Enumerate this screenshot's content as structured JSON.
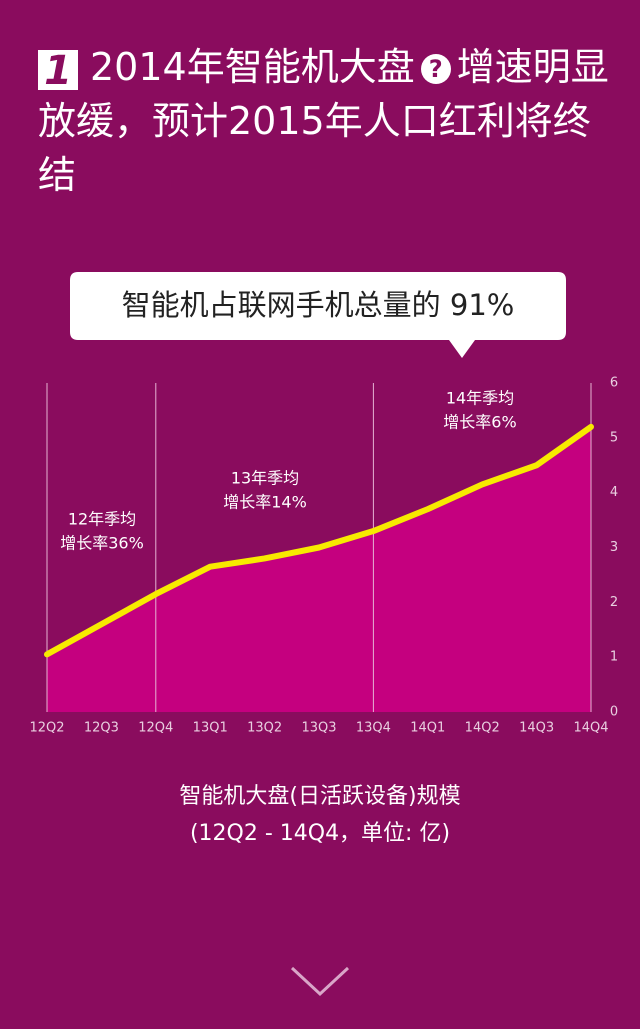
{
  "badge": "1",
  "title_part1": "2014年智能机大盘",
  "title_icon": "?",
  "title_part2": "增速明显放缓，预计2015年人口红利将终结",
  "callout": "智能机占联网手机总量的 91%",
  "chart_data": {
    "type": "area",
    "categories": [
      "12Q2",
      "12Q3",
      "12Q4",
      "13Q1",
      "13Q2",
      "13Q3",
      "13Q4",
      "14Q1",
      "14Q2",
      "14Q3",
      "14Q4"
    ],
    "values": [
      1.05,
      1.6,
      2.15,
      2.65,
      2.8,
      3.0,
      3.3,
      3.7,
      4.15,
      4.5,
      5.2
    ],
    "color": "#c5007f",
    "line_color": "#f7ea00",
    "ylim": [
      0,
      6
    ],
    "yticks": [
      0,
      1,
      2,
      3,
      4,
      5,
      6
    ],
    "annotations": [
      [
        "12年季均",
        "增长率36%"
      ],
      [
        "13年季均",
        "增长率14%"
      ],
      [
        "14年季均",
        "增长率6%"
      ]
    ],
    "caption": [
      "智能机大盘(日活跃设备)规模",
      "(12Q2 - 14Q4，单位: 亿)"
    ]
  }
}
